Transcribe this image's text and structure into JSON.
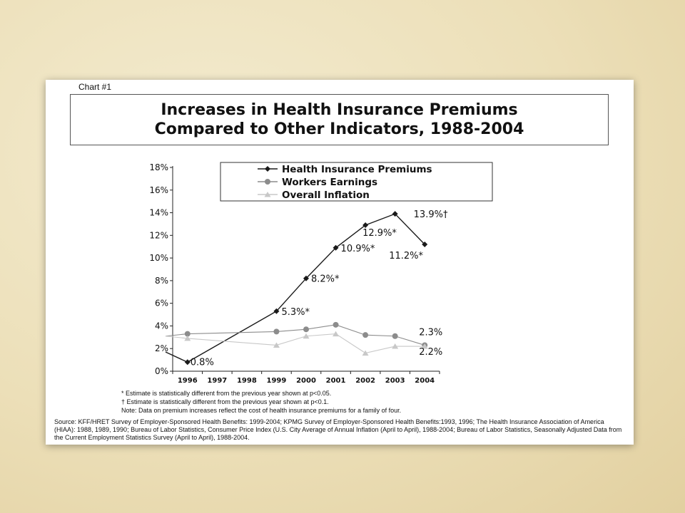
{
  "slide": {
    "chart_label": "Chart #1",
    "title_line1": "Increases in Health Insurance Premiums",
    "title_line2": "Compared to Other Indicators, 1988-2004",
    "notes": [
      "* Estimate is statistically different from the previous year shown at p<0.05.",
      "† Estimate is statistically different from the previous year shown at p<0.1.",
      "Note:  Data on premium increases reflect the cost of health insurance premiums for a family of four."
    ],
    "source": "Source:  KFF/HRET Survey of Employer-Sponsored Health Benefits: 1999-2004; KPMG Survey of Employer-Sponsored Health Benefits:1993, 1996; The Health Insurance Association of America (HIAA): 1988, 1989, 1990; Bureau of Labor Statistics, Consumer Price Index (U.S. City Average of Annual Inflation (April to April), 1988-2004; Bureau of Labor Statistics, Seasonally Adjusted Data from the Current Employment Statistics Survey (April to April), 1988-2004."
  },
  "colors": {
    "background": "#ecdfb8",
    "premiums": "#1a1a1a",
    "earnings": "#8c8c8c",
    "inflation": "#c8c8c8"
  },
  "chart_data": {
    "type": "line",
    "categories": [
      "1996",
      "1997",
      "1998",
      "1999",
      "2000",
      "2001",
      "2002",
      "2003",
      "2004"
    ],
    "ylim": [
      0,
      18
    ],
    "y_ticks": [
      "0%",
      "2%",
      "4%",
      "6%",
      "8%",
      "10%",
      "12%",
      "14%",
      "16%",
      "18%"
    ],
    "legend_position": "top",
    "series": [
      {
        "name": "Health Insurance Premiums",
        "marker": "diamond",
        "lead_in": 1.7,
        "points": [
          {
            "x": "1996",
            "y": 0.8,
            "label": "0.8%"
          },
          {
            "x": "1999",
            "y": 5.3,
            "label": "5.3%*"
          },
          {
            "x": "2000",
            "y": 8.2,
            "label": "8.2%*"
          },
          {
            "x": "2001",
            "y": 10.9,
            "label": "10.9%*"
          },
          {
            "x": "2002",
            "y": 12.9,
            "label": "12.9%*"
          },
          {
            "x": "2003",
            "y": 13.9,
            "label": "13.9%†"
          },
          {
            "x": "2004",
            "y": 11.2,
            "label": "11.2%*"
          }
        ]
      },
      {
        "name": "Workers Earnings",
        "marker": "circle",
        "lead_in": 3.1,
        "points": [
          {
            "x": "1996",
            "y": 3.3
          },
          {
            "x": "1999",
            "y": 3.5
          },
          {
            "x": "2000",
            "y": 3.7
          },
          {
            "x": "2001",
            "y": 4.1
          },
          {
            "x": "2002",
            "y": 3.2
          },
          {
            "x": "2003",
            "y": 3.1
          },
          {
            "x": "2004",
            "y": 2.3,
            "label": "2.3%"
          }
        ]
      },
      {
        "name": "Overall Inflation",
        "marker": "triangle",
        "lead_in": 3.1,
        "points": [
          {
            "x": "1996",
            "y": 2.9
          },
          {
            "x": "1999",
            "y": 2.3
          },
          {
            "x": "2000",
            "y": 3.1
          },
          {
            "x": "2001",
            "y": 3.3
          },
          {
            "x": "2002",
            "y": 1.6
          },
          {
            "x": "2003",
            "y": 2.2
          },
          {
            "x": "2004",
            "y": 2.2,
            "label": "2.2%"
          }
        ]
      }
    ]
  }
}
